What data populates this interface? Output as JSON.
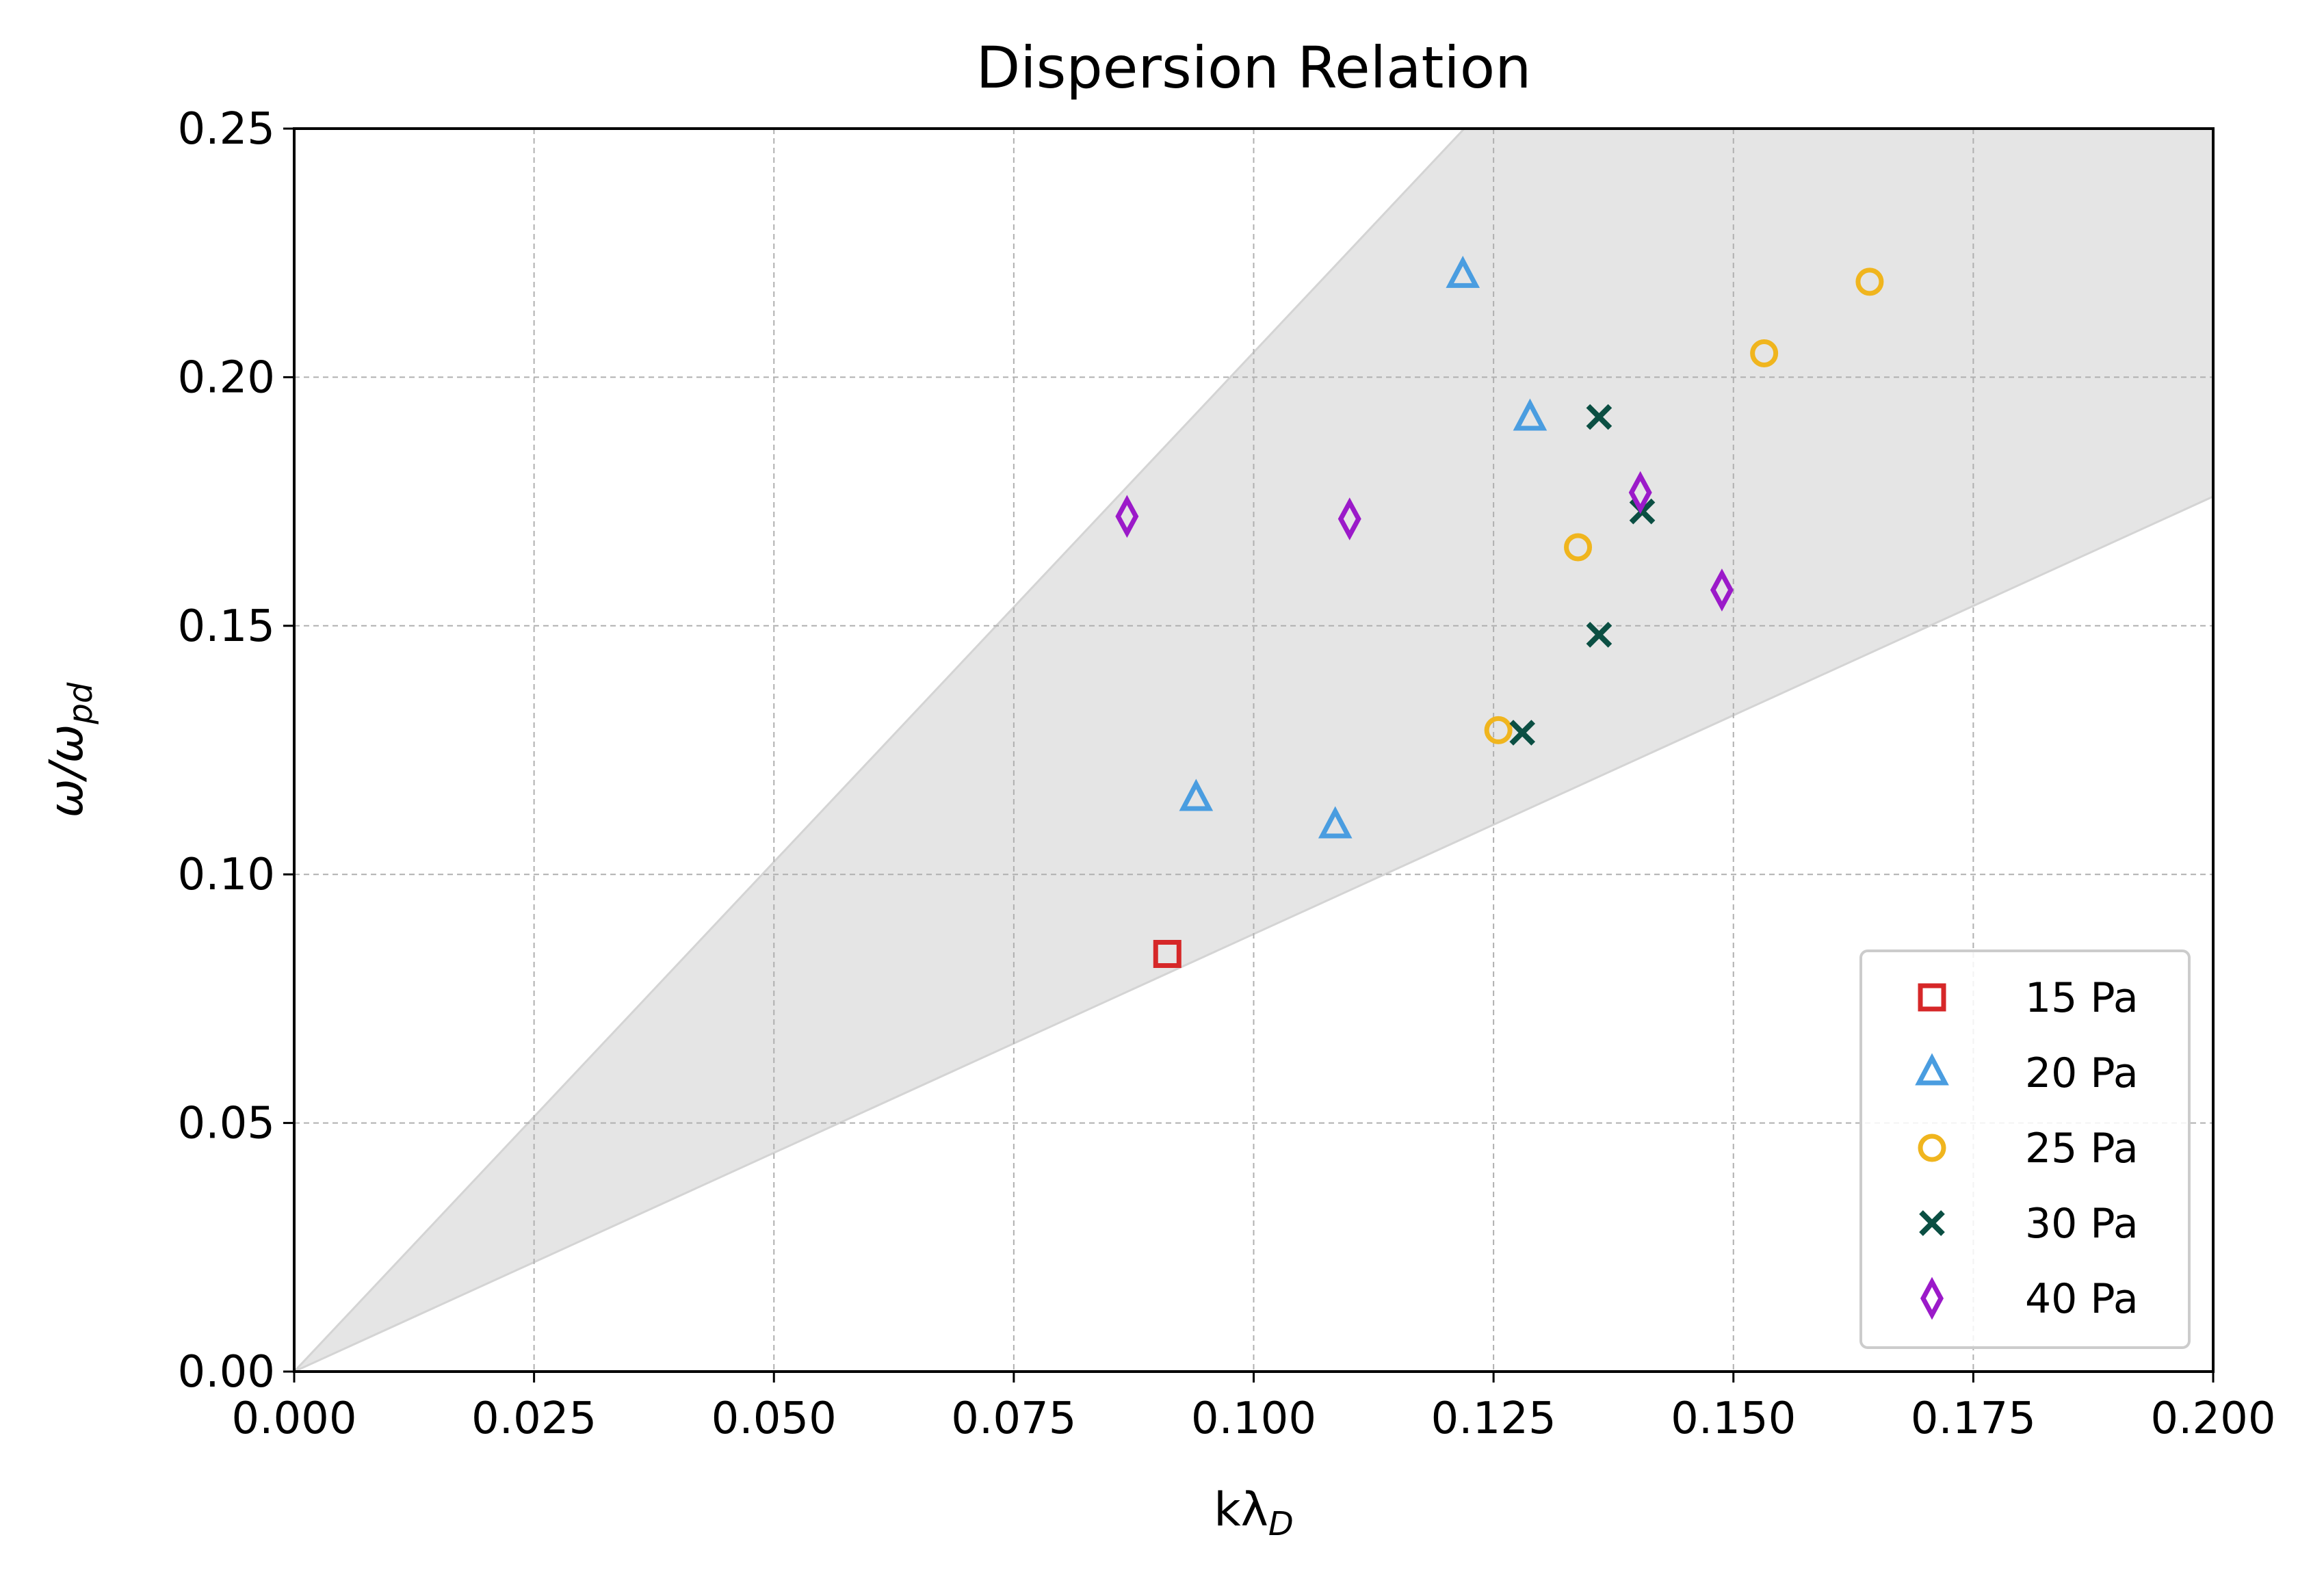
{
  "chart_data": {
    "type": "scatter",
    "title": "Dispersion Relation",
    "xlabel": "kλ",
    "xlabel_sub": "D",
    "ylabel": "ω/ω",
    "ylabel_sub": "pd",
    "xlim": [
      0.0,
      0.2
    ],
    "ylim": [
      0.0,
      0.25
    ],
    "xticks": [
      "0.000",
      "0.025",
      "0.050",
      "0.075",
      "0.100",
      "0.125",
      "0.150",
      "0.175",
      "0.200"
    ],
    "yticks": [
      "0.00",
      "0.05",
      "0.10",
      "0.15",
      "0.20",
      "0.25"
    ],
    "grid": true,
    "legend_position": "lower-right",
    "shaded_region": {
      "description_free": true,
      "lower_slope": 0.88,
      "upper_slope": 2.05,
      "color": "#e5e5e5"
    },
    "series": [
      {
        "name": "15 Pa",
        "marker": "square",
        "color": "#d62728",
        "points": [
          [
            0.091,
            0.084
          ]
        ]
      },
      {
        "name": "20 Pa",
        "marker": "triangle",
        "color": "#4a9de0",
        "points": [
          [
            0.1218,
            0.2205
          ],
          [
            0.1288,
            0.1918
          ],
          [
            0.094,
            0.1153
          ],
          [
            0.1085,
            0.1098
          ]
        ]
      },
      {
        "name": "25 Pa",
        "marker": "circle",
        "color": "#f0b51e",
        "points": [
          [
            0.1642,
            0.2192
          ],
          [
            0.1532,
            0.2048
          ],
          [
            0.1338,
            0.1658
          ],
          [
            0.1255,
            0.129
          ]
        ]
      },
      {
        "name": "30 Pa",
        "marker": "x",
        "color": "#0b4f43",
        "points": [
          [
            0.136,
            0.192
          ],
          [
            0.1405,
            0.173
          ],
          [
            0.136,
            0.1482
          ],
          [
            0.128,
            0.1285
          ]
        ]
      },
      {
        "name": "40 Pa",
        "marker": "diamond",
        "color": "#9b1ac9",
        "points": [
          [
            0.0868,
            0.172
          ],
          [
            0.11,
            0.1715
          ],
          [
            0.1403,
            0.1768
          ],
          [
            0.1488,
            0.1572
          ]
        ]
      }
    ]
  }
}
